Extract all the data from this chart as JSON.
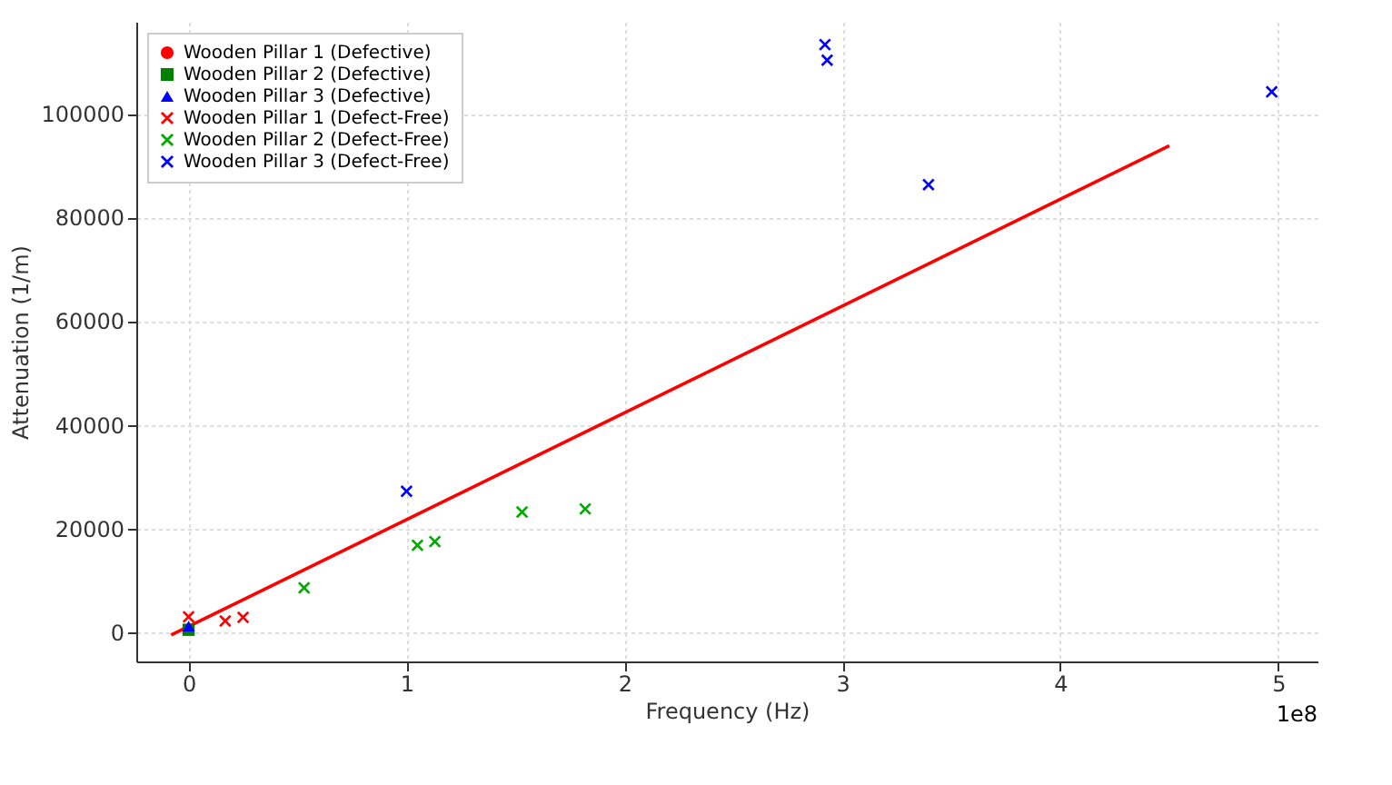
{
  "chart_data": {
    "type": "scatter",
    "xlabel": "Frequency (Hz)",
    "ylabel": "Attenuation (1/m)",
    "xlim": [
      -0.24,
      5.18
    ],
    "ylim": [
      -5600,
      117700
    ],
    "xticks": [
      0,
      1,
      2,
      3,
      4,
      5
    ],
    "yticks": [
      0,
      20000,
      40000,
      60000,
      80000,
      100000
    ],
    "grid": true,
    "legend": "top left",
    "annotations": [
      "1e8"
    ],
    "series": [
      {
        "name": "Wooden Pillar 1 (Defective)",
        "color": "#ff0000",
        "marker": "circle",
        "x": [
          null
        ],
        "values": [
          null
        ]
      },
      {
        "name": "Wooden Pillar 2 (Defective)",
        "color": "#008000",
        "marker": "square",
        "x": [
          0
        ],
        "values": [
          500
        ]
      },
      {
        "name": "Wooden Pillar 3 (Defective)",
        "color": "#0000ff",
        "marker": "triangle",
        "x": [
          0
        ],
        "values": [
          1200
        ]
      },
      {
        "name": "Wooden Pillar 1 (Defect-Free)",
        "color": "#ff0000",
        "marker": "cross",
        "x": [
          0,
          0.168,
          0.25
        ],
        "values": [
          3000,
          2200,
          2900
        ]
      },
      {
        "name": "Wooden Pillar 2 (Defect-Free)",
        "color": "#00aa00",
        "marker": "cross",
        "x": [
          0.53,
          1.05,
          1.13,
          1.53,
          1.82
        ],
        "values": [
          8600,
          16800,
          17500,
          23200,
          23800
        ]
      },
      {
        "name": "Wooden Pillar 3 (Defect-Free)",
        "color": "#0000ff",
        "marker": "cross",
        "x": [
          1.0,
          2.92,
          2.93,
          3.395,
          4.97
        ],
        "values": [
          27200,
          113300,
          110300,
          86300,
          104200
        ]
      },
      {
        "type": "line",
        "color": "#ff0000",
        "x": [
          -0.08,
          4.5
        ],
        "values": [
          -500,
          93800
        ]
      }
    ]
  }
}
